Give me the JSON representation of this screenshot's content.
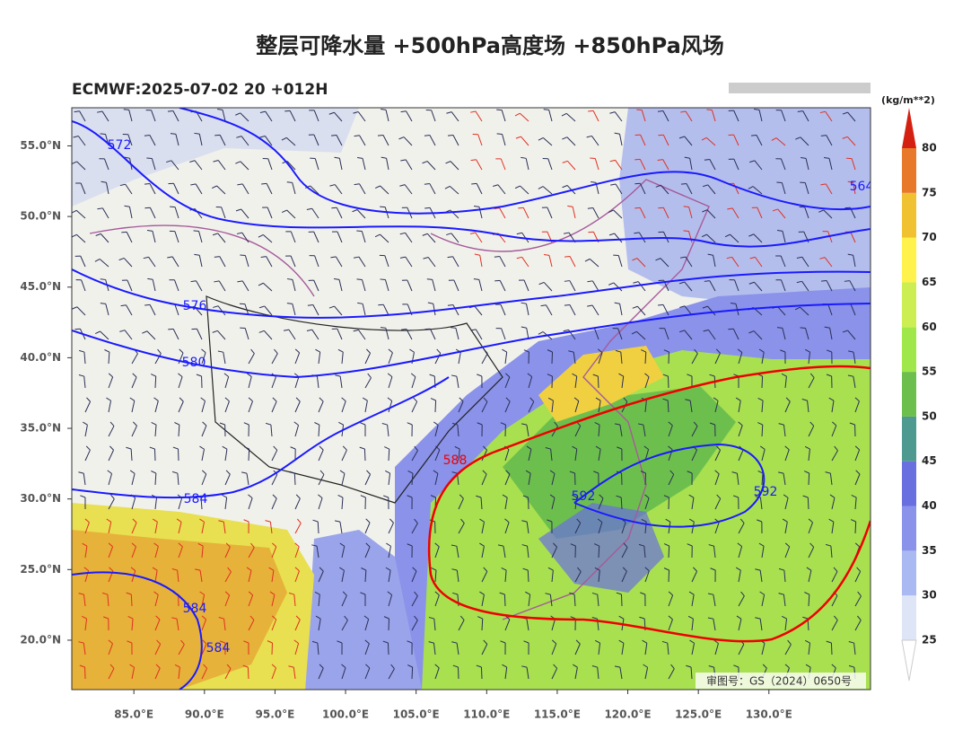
{
  "header": {
    "title": "整层可降水量 +500hPa高度场 +850hPa风场",
    "subtitle": "ECMWF:2025-07-02 20 +012H"
  },
  "map": {
    "lonlim": [
      80.6,
      137.2
    ],
    "latlim": [
      16.5,
      57.7
    ],
    "lon_ticks": [
      {
        "value": 85,
        "label": "85.0°E"
      },
      {
        "value": 90,
        "label": "90.0°E"
      },
      {
        "value": 95,
        "label": "95.0°E"
      },
      {
        "value": 100,
        "label": "100.0°E"
      },
      {
        "value": 105,
        "label": "105.0°E"
      },
      {
        "value": 110,
        "label": "110.0°E"
      },
      {
        "value": 115,
        "label": "115.0°E"
      },
      {
        "value": 120,
        "label": "120.0°E"
      },
      {
        "value": 125,
        "label": "125.0°E"
      },
      {
        "value": 130,
        "label": "130.0°E"
      }
    ],
    "lat_ticks": [
      {
        "value": 55,
        "label": "55.0°N"
      },
      {
        "value": 50,
        "label": "50.0°N"
      },
      {
        "value": 45,
        "label": "45.0°N"
      },
      {
        "value": 40,
        "label": "40.0°N"
      },
      {
        "value": 35,
        "label": "35.0°N"
      },
      {
        "value": 30,
        "label": "30.0°N"
      },
      {
        "value": 25,
        "label": "25.0°N"
      },
      {
        "value": 20,
        "label": "20.0°N"
      }
    ],
    "contour_labels": [
      "572",
      "576",
      "580",
      "584",
      "588",
      "592",
      "592",
      "564",
      "584",
      "584"
    ],
    "approval": "审图号：GS（2024）0650号"
  },
  "colorbar": {
    "unit": "(kg/m**2)",
    "levels": [
      25,
      30,
      35,
      40,
      45,
      50,
      55,
      60,
      65,
      70,
      75,
      80
    ],
    "colors": [
      "#dde5f6",
      "#aab9f1",
      "#8a92ea",
      "#6a6fe0",
      "#4f9a90",
      "#6dbf4d",
      "#a0e84a",
      "#ccee52",
      "#fff24c",
      "#f0c232",
      "#e8792b"
    ],
    "extend_color": "#d42010"
  }
}
